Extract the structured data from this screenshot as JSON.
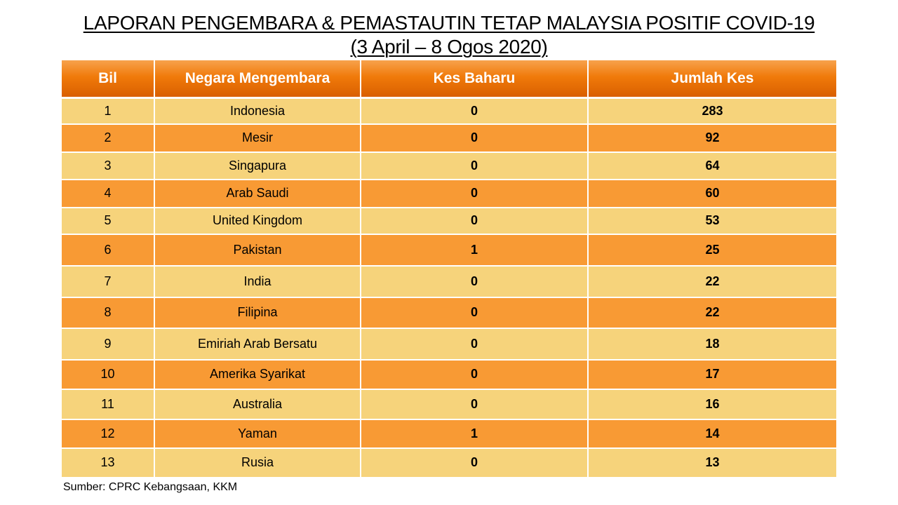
{
  "title": {
    "line1": "LAPORAN PENGEMBARA & PEMASTAUTIN TETAP MALAYSIA POSITIF COVID-19",
    "line2": "(3 April – 8 Ogos 2020)"
  },
  "table": {
    "headers": [
      "Bil",
      "Negara Mengembara",
      "Kes Baharu",
      "Jumlah Kes"
    ],
    "rows": [
      {
        "bil": "1",
        "negara": "Indonesia",
        "kes_baharu": "0",
        "jumlah_kes": "283"
      },
      {
        "bil": "2",
        "negara": "Mesir",
        "kes_baharu": "0",
        "jumlah_kes": "92"
      },
      {
        "bil": "3",
        "negara": "Singapura",
        "kes_baharu": "0",
        "jumlah_kes": "64"
      },
      {
        "bil": "4",
        "negara": "Arab Saudi",
        "kes_baharu": "0",
        "jumlah_kes": "60"
      },
      {
        "bil": "5",
        "negara": "United Kingdom",
        "kes_baharu": "0",
        "jumlah_kes": "53"
      },
      {
        "bil": "6",
        "negara": "Pakistan",
        "kes_baharu": "1",
        "jumlah_kes": "25"
      },
      {
        "bil": "7",
        "negara": "India",
        "kes_baharu": "0",
        "jumlah_kes": "22"
      },
      {
        "bil": "8",
        "negara": "Filipina",
        "kes_baharu": "0",
        "jumlah_kes": "22"
      },
      {
        "bil": "9",
        "negara": "Emiriah Arab Bersatu",
        "kes_baharu": "0",
        "jumlah_kes": "18"
      },
      {
        "bil": "10",
        "negara": "Amerika Syarikat",
        "kes_baharu": "0",
        "jumlah_kes": "17"
      },
      {
        "bil": "11",
        "negara": "Australia",
        "kes_baharu": "0",
        "jumlah_kes": "16"
      },
      {
        "bil": "12",
        "negara": "Yaman",
        "kes_baharu": "1",
        "jumlah_kes": "14"
      },
      {
        "bil": "13",
        "negara": "Rusia",
        "kes_baharu": "0",
        "jumlah_kes": "13"
      }
    ]
  },
  "source": "Sumber: CPRC Kebangsaan, KKM",
  "colors": {
    "header_orange": "#f07a0a",
    "row_light": "#f6d37b",
    "row_dark": "#f89a34"
  }
}
